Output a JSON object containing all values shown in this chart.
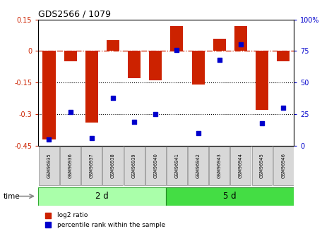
{
  "title": "GDS2566 / 1079",
  "samples": [
    "GSM96935",
    "GSM96936",
    "GSM96937",
    "GSM96938",
    "GSM96939",
    "GSM96940",
    "GSM96941",
    "GSM96942",
    "GSM96943",
    "GSM96944",
    "GSM96945",
    "GSM96946"
  ],
  "log2_ratio": [
    -0.42,
    -0.05,
    -0.34,
    0.05,
    -0.13,
    -0.14,
    0.12,
    -0.16,
    0.06,
    0.12,
    -0.28,
    -0.05
  ],
  "percentile_rank": [
    5,
    27,
    6,
    38,
    19,
    25,
    76,
    10,
    68,
    80,
    18,
    30
  ],
  "group1_label": "2 d",
  "group2_label": "5 d",
  "group1_count": 6,
  "group2_count": 6,
  "bar_color": "#CC2200",
  "dot_color": "#0000CC",
  "ylim_left": [
    -0.45,
    0.15
  ],
  "ylim_right": [
    0,
    100
  ],
  "yticks_left": [
    0.15,
    0.0,
    -0.15,
    -0.3,
    -0.45
  ],
  "yticks_right": [
    100,
    75,
    50,
    25,
    0
  ],
  "hline_color": "#CC2200",
  "dotline1": -0.15,
  "dotline2": -0.3,
  "group1_color": "#AAFFAA",
  "group2_color": "#44DD44",
  "label_log2": "log2 ratio",
  "label_pct": "percentile rank within the sample",
  "time_label": "time",
  "background_plot": "#FFFFFF",
  "tick_label_color_left": "#CC2200",
  "tick_label_color_right": "#0000CC",
  "bar_width": 0.6
}
